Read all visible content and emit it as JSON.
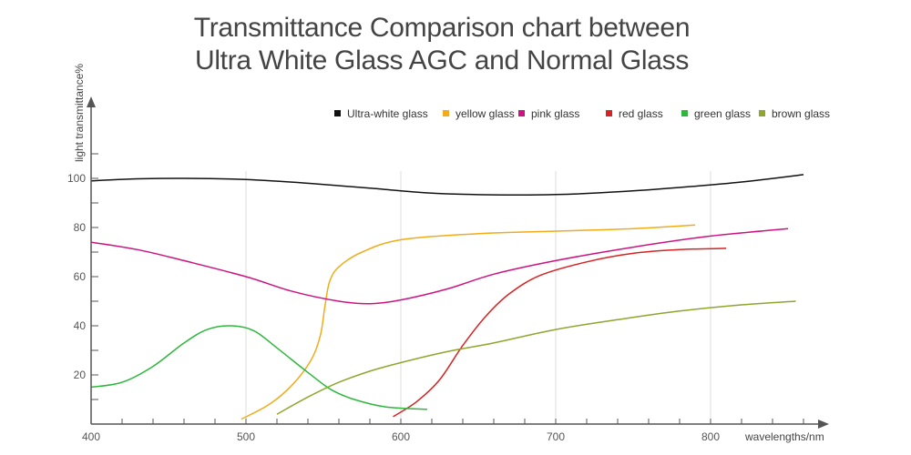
{
  "chart_data": {
    "type": "line",
    "title_line1": "Transmittance Comparison chart between",
    "title_line2": "Ultra White Glass AGC and Normal Glass",
    "xlabel": "wavelengths/nm",
    "ylabel": "light transmittance%",
    "xlim": [
      400,
      880
    ],
    "ylim": [
      0,
      130
    ],
    "x_ticks": [
      400,
      500,
      600,
      700,
      800
    ],
    "y_ticks": [
      20,
      40,
      60,
      80,
      100
    ],
    "series": [
      {
        "name": "Ultra-white glass",
        "color": "#111111",
        "points": [
          [
            400,
            99
          ],
          [
            430,
            99.8
          ],
          [
            460,
            100
          ],
          [
            500,
            99.5
          ],
          [
            540,
            98
          ],
          [
            580,
            96
          ],
          [
            620,
            94
          ],
          [
            660,
            93.3
          ],
          [
            700,
            93.4
          ],
          [
            740,
            94.5
          ],
          [
            780,
            96.3
          ],
          [
            820,
            98.5
          ],
          [
            860,
            101.5
          ]
        ]
      },
      {
        "name": "yellow glass",
        "color": "#f0ac1a",
        "points": [
          [
            497,
            2
          ],
          [
            515,
            8
          ],
          [
            530,
            16
          ],
          [
            542,
            26
          ],
          [
            548,
            36
          ],
          [
            551,
            48
          ],
          [
            554,
            58
          ],
          [
            560,
            64
          ],
          [
            575,
            70
          ],
          [
            600,
            75
          ],
          [
            650,
            77.5
          ],
          [
            700,
            78.5
          ],
          [
            750,
            79.5
          ],
          [
            790,
            81
          ]
        ]
      },
      {
        "name": "pink glass",
        "color": "#cc1480",
        "points": [
          [
            400,
            74
          ],
          [
            430,
            71
          ],
          [
            460,
            66.5
          ],
          [
            500,
            60
          ],
          [
            530,
            54
          ],
          [
            560,
            50
          ],
          [
            580,
            49
          ],
          [
            600,
            50.5
          ],
          [
            630,
            55
          ],
          [
            660,
            61
          ],
          [
            700,
            66.5
          ],
          [
            750,
            72
          ],
          [
            800,
            76.5
          ],
          [
            850,
            79.5
          ]
        ]
      },
      {
        "name": "red glass",
        "color": "#d62323",
        "points": [
          [
            595,
            3
          ],
          [
            610,
            9
          ],
          [
            625,
            18
          ],
          [
            640,
            32
          ],
          [
            655,
            44
          ],
          [
            670,
            53
          ],
          [
            690,
            60.5
          ],
          [
            720,
            66
          ],
          [
            750,
            69.5
          ],
          [
            780,
            71
          ],
          [
            810,
            71.5
          ]
        ]
      },
      {
        "name": "green  glass",
        "color": "#2db83d",
        "points": [
          [
            400,
            15
          ],
          [
            420,
            17
          ],
          [
            440,
            23.5
          ],
          [
            460,
            33
          ],
          [
            475,
            38.5
          ],
          [
            490,
            40
          ],
          [
            505,
            38
          ],
          [
            520,
            31
          ],
          [
            540,
            21
          ],
          [
            555,
            14
          ],
          [
            570,
            10
          ],
          [
            590,
            7
          ],
          [
            617,
            6
          ]
        ]
      },
      {
        "name": "brown glass",
        "color": "#8fa62e",
        "points": [
          [
            520,
            4
          ],
          [
            540,
            11
          ],
          [
            560,
            17
          ],
          [
            580,
            21.5
          ],
          [
            600,
            25
          ],
          [
            630,
            29.5
          ],
          [
            660,
            33
          ],
          [
            700,
            38.5
          ],
          [
            740,
            42.5
          ],
          [
            780,
            46
          ],
          [
            820,
            48.5
          ],
          [
            855,
            50
          ]
        ]
      }
    ]
  }
}
